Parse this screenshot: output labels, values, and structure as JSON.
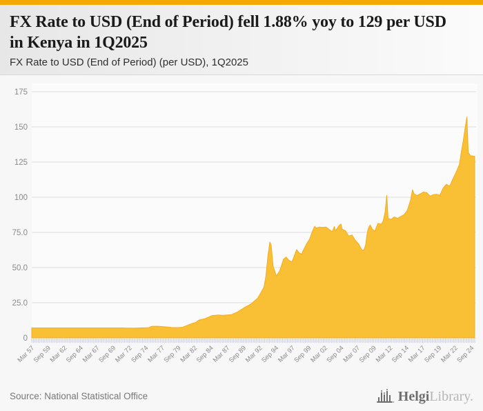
{
  "page": {
    "accent_bar_color": "#F5A800",
    "background_color": "#F7F7F7"
  },
  "header": {
    "title": "FX Rate to USD (End of Period) fell 1.88% yoy to 129 per USD in Kenya in 1Q2025",
    "subtitle": "FX Rate to USD (End of Period) (per USD), 1Q2025"
  },
  "chart_data": {
    "type": "area",
    "title": "FX Rate to USD (End of Period) (per USD), 1Q2025",
    "ylabel": "",
    "xlabel": "",
    "ylim": [
      0,
      175
    ],
    "x_range": [
      1957.25,
      2025.25
    ],
    "grid": true,
    "legend": false,
    "fill_color": "#F9BF35",
    "stroke_color": "#F3AC20",
    "gridline_color": "#dcdcdc",
    "tick_color": "#c5cbdf",
    "axis_label_color": "#8a8a8a",
    "plot_bg_color": "#fbfbfb",
    "y_tick_labels": [
      "175",
      "150",
      "125",
      "100",
      "75.0",
      "50.0",
      "25.0",
      "0"
    ],
    "y_tick_values": [
      175,
      150,
      125,
      100,
      75,
      50,
      25,
      0
    ],
    "x_tick_quarters_total": 273,
    "x_label_every_n_ticks": 10,
    "x_tick_labels": [
      "Mar 57",
      "Sep 59",
      "Mar 62",
      "Sep 64",
      "Mar 67",
      "Sep 69",
      "Mar 72",
      "Sep 74",
      "Mar 77",
      "Sep 79",
      "Mar 82",
      "Sep 84",
      "Mar 87",
      "Sep 89",
      "Mar 92",
      "Sep 94",
      "Mar 97",
      "Sep 99",
      "Mar 02",
      "Sep 04",
      "Mar 07",
      "Sep 09",
      "Mar 12",
      "Sep 14",
      "Mar 17",
      "Sep 19",
      "Mar 22",
      "Sep 24"
    ],
    "series": [
      {
        "name": "FX Rate to USD (End of Period)",
        "points": [
          [
            1957.25,
            7.1
          ],
          [
            1960,
            7.1
          ],
          [
            1963,
            7.1
          ],
          [
            1966,
            7.1
          ],
          [
            1969,
            7.1
          ],
          [
            1971,
            7.1
          ],
          [
            1972,
            7.0
          ],
          [
            1973,
            7.0
          ],
          [
            1974,
            7.1
          ],
          [
            1975.2,
            7.3
          ],
          [
            1975.7,
            8.3
          ],
          [
            1976.7,
            8.3
          ],
          [
            1977.7,
            7.9
          ],
          [
            1978.7,
            7.4
          ],
          [
            1979.7,
            7.3
          ],
          [
            1980.4,
            7.6
          ],
          [
            1981.2,
            9.0
          ],
          [
            1981.9,
            10.3
          ],
          [
            1982.4,
            11.0
          ],
          [
            1982.9,
            12.7
          ],
          [
            1983.9,
            13.8
          ],
          [
            1984.9,
            15.8
          ],
          [
            1985.9,
            16.3
          ],
          [
            1986.5,
            16.0
          ],
          [
            1987.9,
            16.5
          ],
          [
            1988.9,
            18.6
          ],
          [
            1989.9,
            21.6
          ],
          [
            1990.9,
            24.1
          ],
          [
            1991.9,
            28.1
          ],
          [
            1992.4,
            32.0
          ],
          [
            1992.9,
            36.2
          ],
          [
            1993.2,
            44.0
          ],
          [
            1993.5,
            58.0
          ],
          [
            1993.8,
            68.2
          ],
          [
            1994.0,
            66.0
          ],
          [
            1994.3,
            51.0
          ],
          [
            1994.8,
            44.0
          ],
          [
            1995.3,
            47.5
          ],
          [
            1995.9,
            55.9
          ],
          [
            1996.3,
            57.5
          ],
          [
            1996.7,
            55.2
          ],
          [
            1997.2,
            54.0
          ],
          [
            1997.9,
            62.7
          ],
          [
            1998.3,
            60.5
          ],
          [
            1998.7,
            59.5
          ],
          [
            1998.9,
            61.9
          ],
          [
            1999.4,
            66.5
          ],
          [
            1999.9,
            70.3
          ],
          [
            2000.4,
            76.5
          ],
          [
            2000.7,
            79.3
          ],
          [
            2000.9,
            78.0
          ],
          [
            2001.4,
            78.8
          ],
          [
            2001.9,
            78.6
          ],
          [
            2002.4,
            78.8
          ],
          [
            2002.9,
            77.1
          ],
          [
            2003.4,
            75.5
          ],
          [
            2003.7,
            79.2
          ],
          [
            2003.9,
            76.1
          ],
          [
            2004.4,
            79.8
          ],
          [
            2004.7,
            81.0
          ],
          [
            2004.9,
            77.3
          ],
          [
            2005.4,
            76.2
          ],
          [
            2005.9,
            72.4
          ],
          [
            2006.4,
            73.2
          ],
          [
            2006.9,
            69.4
          ],
          [
            2007.4,
            67.0
          ],
          [
            2007.9,
            62.7
          ],
          [
            2008.2,
            62.2
          ],
          [
            2008.5,
            66.0
          ],
          [
            2008.7,
            73.0
          ],
          [
            2008.9,
            77.7
          ],
          [
            2009.2,
            80.3
          ],
          [
            2009.5,
            77.5
          ],
          [
            2009.9,
            75.8
          ],
          [
            2010.4,
            81.5
          ],
          [
            2010.9,
            80.8
          ],
          [
            2011.2,
            83.2
          ],
          [
            2011.5,
            89.7
          ],
          [
            2011.75,
            101.3
          ],
          [
            2011.95,
            85.1
          ],
          [
            2012.4,
            84.2
          ],
          [
            2012.9,
            86.0
          ],
          [
            2013.4,
            85.0
          ],
          [
            2013.9,
            86.3
          ],
          [
            2014.4,
            87.6
          ],
          [
            2014.9,
            90.6
          ],
          [
            2015.4,
            98.0
          ],
          [
            2015.7,
            105.3
          ],
          [
            2015.95,
            102.3
          ],
          [
            2016.4,
            101.2
          ],
          [
            2016.9,
            102.5
          ],
          [
            2017.4,
            103.7
          ],
          [
            2017.9,
            103.2
          ],
          [
            2018.4,
            100.8
          ],
          [
            2018.9,
            101.8
          ],
          [
            2019.4,
            102.1
          ],
          [
            2019.9,
            101.4
          ],
          [
            2020.4,
            106.5
          ],
          [
            2020.9,
            109.2
          ],
          [
            2021.4,
            107.9
          ],
          [
            2021.9,
            113.1
          ],
          [
            2022.4,
            117.8
          ],
          [
            2022.9,
            123.4
          ],
          [
            2023.2,
            132.3
          ],
          [
            2023.5,
            140.5
          ],
          [
            2023.8,
            150.0
          ],
          [
            2024.05,
            157.0
          ],
          [
            2024.25,
            131.8
          ],
          [
            2024.6,
            129.5
          ],
          [
            2024.9,
            129.3
          ],
          [
            2025.25,
            129.0
          ]
        ]
      }
    ]
  },
  "footer": {
    "source": "Source: National Statistical Office",
    "logo": {
      "brand_primary": "Helgi",
      "brand_secondary": "Library."
    }
  }
}
